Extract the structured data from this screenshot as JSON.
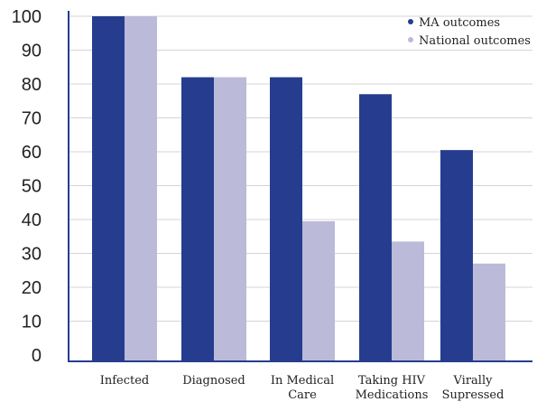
{
  "chart_data": {
    "type": "bar",
    "categories": [
      [
        "Infected"
      ],
      [
        "Diagnosed"
      ],
      [
        "In Medical",
        "Care"
      ],
      [
        "Taking HIV",
        "Medications"
      ],
      [
        "Virally",
        "Supressed"
      ]
    ],
    "series": [
      {
        "name": "MA outcomes",
        "color": "#263d8f",
        "values": [
          100,
          82,
          82,
          77,
          60.5
        ]
      },
      {
        "name": "National outcomes",
        "color": "#bbbad9",
        "values": [
          100,
          82,
          39.5,
          33.5,
          27
        ]
      }
    ],
    "ylim": [
      0,
      100
    ],
    "yticks": [
      0,
      10,
      20,
      30,
      40,
      50,
      60,
      70,
      80,
      90,
      100
    ],
    "grid": true,
    "legend_position": "top-right",
    "title": "",
    "xlabel": "",
    "ylabel": ""
  }
}
